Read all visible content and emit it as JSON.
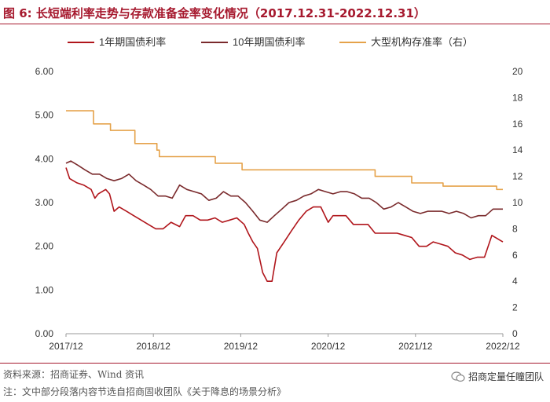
{
  "title": "图 6:  长短端利率走势与存款准备金率变化情况（2017.12.31-2022.12.31）",
  "source": "资料来源：招商证券、Wind 资讯",
  "note": "注：文中部分段落内容节选自招商固收团队《关于降息的场景分析》",
  "brand": "招商定量任瞳团队",
  "brand_icon": "wechat-icon",
  "colors": {
    "title": "#a6192e",
    "series_1y": "#b0151b",
    "series_10y": "#7a2a2c",
    "series_rrr": "#e5a24a",
    "axis": "#999999"
  },
  "chart_data": {
    "type": "line",
    "title": "",
    "x_ticks": [
      "2017/12",
      "2018/12",
      "2019/12",
      "2020/12",
      "2021/12",
      "2022/12"
    ],
    "y_left": {
      "lim": [
        0,
        6
      ],
      "ticks": [
        "0.00",
        "1.00",
        "2.00",
        "3.00",
        "4.00",
        "5.00",
        "6.00"
      ]
    },
    "y_right": {
      "lim": [
        0,
        20
      ],
      "ticks": [
        "0",
        "2",
        "4",
        "6",
        "8",
        "10",
        "12",
        "14",
        "16",
        "18",
        "20"
      ]
    },
    "legend_position": "top",
    "series": [
      {
        "name": "1年期国债利率",
        "axis": "left",
        "x": [
          "2017-12-31",
          "2018-01-15",
          "2018-02-15",
          "2018-03-15",
          "2018-04-15",
          "2018-05-01",
          "2018-05-15",
          "2018-06-15",
          "2018-07-01",
          "2018-07-20",
          "2018-08-10",
          "2018-09-10",
          "2018-10-10",
          "2018-11-10",
          "2018-12-10",
          "2019-01-10",
          "2019-02-10",
          "2019-03-15",
          "2019-04-20",
          "2019-05-15",
          "2019-06-15",
          "2019-07-15",
          "2019-08-15",
          "2019-09-15",
          "2019-10-15",
          "2019-11-15",
          "2019-12-15",
          "2020-01-15",
          "2020-02-01",
          "2020-02-20",
          "2020-03-10",
          "2020-04-01",
          "2020-04-20",
          "2020-05-10",
          "2020-05-30",
          "2020-06-30",
          "2020-07-30",
          "2020-08-30",
          "2020-09-30",
          "2020-10-30",
          "2020-11-30",
          "2020-12-31",
          "2021-01-20",
          "2021-02-15",
          "2021-03-15",
          "2021-04-15",
          "2021-05-15",
          "2021-06-15",
          "2021-07-15",
          "2021-08-15",
          "2021-09-15",
          "2021-10-15",
          "2021-11-15",
          "2021-12-15",
          "2022-01-15",
          "2022-02-15",
          "2022-03-15",
          "2022-04-15",
          "2022-05-15",
          "2022-06-15",
          "2022-07-15",
          "2022-08-15",
          "2022-09-15",
          "2022-10-15",
          "2022-11-15",
          "2022-12-31"
        ],
        "y": [
          3.8,
          3.55,
          3.45,
          3.4,
          3.3,
          3.1,
          3.2,
          3.3,
          3.2,
          2.8,
          2.9,
          2.8,
          2.7,
          2.6,
          2.5,
          2.4,
          2.4,
          2.55,
          2.45,
          2.7,
          2.7,
          2.6,
          2.6,
          2.65,
          2.55,
          2.6,
          2.65,
          2.5,
          2.3,
          2.1,
          1.95,
          1.4,
          1.2,
          1.2,
          1.85,
          2.1,
          2.35,
          2.6,
          2.8,
          2.9,
          2.9,
          2.55,
          2.7,
          2.7,
          2.7,
          2.5,
          2.5,
          2.5,
          2.3,
          2.3,
          2.3,
          2.3,
          2.25,
          2.2,
          2.0,
          2.0,
          2.1,
          2.05,
          2.0,
          1.85,
          1.8,
          1.7,
          1.75,
          1.75,
          2.25,
          2.1
        ]
      },
      {
        "name": "10年期国债利率",
        "axis": "left",
        "x": [
          "2017-12-31",
          "2018-01-20",
          "2018-02-20",
          "2018-03-20",
          "2018-04-20",
          "2018-05-20",
          "2018-06-20",
          "2018-07-20",
          "2018-08-20",
          "2018-09-20",
          "2018-10-20",
          "2018-11-20",
          "2018-12-20",
          "2019-01-20",
          "2019-02-20",
          "2019-03-20",
          "2019-04-20",
          "2019-05-20",
          "2019-06-20",
          "2019-07-20",
          "2019-08-20",
          "2019-09-20",
          "2019-10-20",
          "2019-11-20",
          "2019-12-20",
          "2020-01-20",
          "2020-02-20",
          "2020-03-20",
          "2020-04-20",
          "2020-05-20",
          "2020-06-20",
          "2020-07-20",
          "2020-08-20",
          "2020-09-20",
          "2020-10-20",
          "2020-11-20",
          "2020-12-20",
          "2021-01-20",
          "2021-02-20",
          "2021-03-20",
          "2021-04-20",
          "2021-05-20",
          "2021-06-20",
          "2021-07-20",
          "2021-08-20",
          "2021-09-20",
          "2021-10-20",
          "2021-11-20",
          "2021-12-20",
          "2022-01-20",
          "2022-02-20",
          "2022-03-20",
          "2022-04-20",
          "2022-05-20",
          "2022-06-20",
          "2022-07-20",
          "2022-08-20",
          "2022-09-20",
          "2022-10-20",
          "2022-11-20",
          "2022-12-31"
        ],
        "y": [
          3.9,
          3.95,
          3.85,
          3.75,
          3.65,
          3.65,
          3.55,
          3.5,
          3.55,
          3.65,
          3.5,
          3.4,
          3.3,
          3.15,
          3.15,
          3.1,
          3.4,
          3.3,
          3.25,
          3.2,
          3.05,
          3.1,
          3.25,
          3.15,
          3.15,
          3.0,
          2.8,
          2.6,
          2.55,
          2.7,
          2.85,
          3.0,
          3.05,
          3.15,
          3.2,
          3.3,
          3.25,
          3.2,
          3.25,
          3.25,
          3.2,
          3.1,
          3.1,
          3.0,
          2.85,
          2.9,
          3.0,
          2.9,
          2.8,
          2.75,
          2.8,
          2.8,
          2.8,
          2.75,
          2.8,
          2.75,
          2.65,
          2.7,
          2.7,
          2.85,
          2.85
        ]
      },
      {
        "name": "大型机构存准率（右）",
        "axis": "right",
        "x": [
          "2017-12-31",
          "2018-04-25",
          "2018-07-05",
          "2018-10-15",
          "2019-01-15",
          "2019-01-25",
          "2019-09-16",
          "2020-01-06",
          "2021-07-15",
          "2021-12-15",
          "2022-04-25",
          "2022-12-05",
          "2022-12-31"
        ],
        "y": [
          17.0,
          16.0,
          15.5,
          14.5,
          14.0,
          13.5,
          13.0,
          12.5,
          12.0,
          11.5,
          11.25,
          11.0,
          11.0
        ]
      }
    ]
  }
}
